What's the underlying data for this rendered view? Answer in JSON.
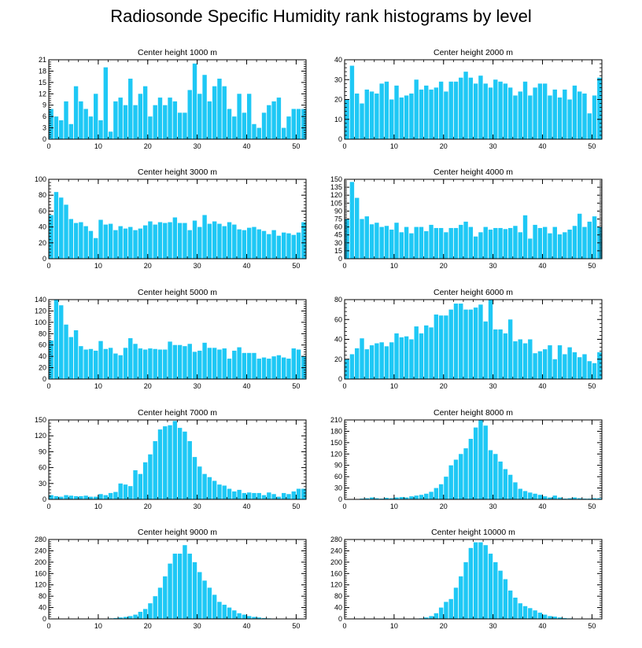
{
  "title": "Radiosonde Specific Humidity rank histograms by level",
  "colors": {
    "bar": "#1EC8F5",
    "axis": "#000000",
    "background": "#ffffff"
  },
  "chart_data": [
    {
      "type": "bar",
      "title": "Center height 1000 m",
      "x": [
        0,
        1,
        2,
        3,
        4,
        5,
        6,
        7,
        8,
        9,
        10,
        11,
        12,
        13,
        14,
        15,
        16,
        17,
        18,
        19,
        20,
        21,
        22,
        23,
        24,
        25,
        26,
        27,
        28,
        29,
        30,
        31,
        32,
        33,
        34,
        35,
        36,
        37,
        38,
        39,
        40,
        41,
        42,
        43,
        44,
        45,
        46,
        47,
        48,
        49,
        50,
        51
      ],
      "values": [
        8,
        6,
        5,
        10,
        4,
        14,
        10,
        8,
        6,
        12,
        5,
        19,
        2,
        10,
        11,
        9,
        16,
        9,
        12,
        14,
        6,
        9,
        11,
        9,
        11,
        10,
        7,
        7,
        13,
        20,
        12,
        17,
        10,
        14,
        16,
        14,
        8,
        6,
        12,
        7,
        12,
        4,
        3,
        7,
        9,
        10,
        11,
        3,
        6,
        8,
        8,
        8
      ],
      "xlim": [
        0,
        52
      ],
      "ylim": [
        0,
        21
      ],
      "xticks": [
        0,
        10,
        20,
        30,
        40,
        50
      ],
      "yticks": [
        0,
        3,
        6,
        9,
        12,
        15,
        18,
        21
      ]
    },
    {
      "type": "bar",
      "title": "Center height 2000 m",
      "x": [
        0,
        1,
        2,
        3,
        4,
        5,
        6,
        7,
        8,
        9,
        10,
        11,
        12,
        13,
        14,
        15,
        16,
        17,
        18,
        19,
        20,
        21,
        22,
        23,
        24,
        25,
        26,
        27,
        28,
        29,
        30,
        31,
        32,
        33,
        34,
        35,
        36,
        37,
        38,
        39,
        40,
        41,
        42,
        43,
        44,
        45,
        46,
        47,
        48,
        49,
        50,
        51
      ],
      "values": [
        20,
        37,
        23,
        18,
        25,
        24,
        23,
        28,
        29,
        20,
        27,
        21,
        22,
        23,
        30,
        25,
        27,
        25,
        26,
        29,
        24,
        29,
        29,
        31,
        34,
        31,
        28,
        32,
        28,
        26,
        30,
        29,
        28,
        26,
        22,
        24,
        29,
        22,
        26,
        28,
        28,
        22,
        25,
        21,
        25,
        20,
        27,
        24,
        23,
        13,
        22,
        31
      ],
      "xlim": [
        0,
        52
      ],
      "ylim": [
        0,
        40
      ],
      "xticks": [
        0,
        10,
        20,
        30,
        40,
        50
      ],
      "yticks": [
        0,
        10,
        20,
        30,
        40
      ]
    },
    {
      "type": "bar",
      "title": "Center height 3000 m",
      "x": [
        0,
        1,
        2,
        3,
        4,
        5,
        6,
        7,
        8,
        9,
        10,
        11,
        12,
        13,
        14,
        15,
        16,
        17,
        18,
        19,
        20,
        21,
        22,
        23,
        24,
        25,
        26,
        27,
        28,
        29,
        30,
        31,
        32,
        33,
        34,
        35,
        36,
        37,
        38,
        39,
        40,
        41,
        42,
        43,
        44,
        45,
        46,
        47,
        48,
        49,
        50,
        51
      ],
      "values": [
        55,
        84,
        77,
        68,
        50,
        45,
        46,
        41,
        35,
        26,
        49,
        43,
        44,
        36,
        41,
        38,
        40,
        36,
        38,
        42,
        47,
        43,
        46,
        45,
        46,
        52,
        45,
        45,
        36,
        48,
        40,
        55,
        44,
        47,
        44,
        41,
        46,
        43,
        37,
        36,
        39,
        40,
        37,
        35,
        31,
        36,
        29,
        33,
        32,
        30,
        33,
        46
      ],
      "xlim": [
        0,
        52
      ],
      "ylim": [
        0,
        100
      ],
      "xticks": [
        0,
        10,
        20,
        30,
        40,
        50
      ],
      "yticks": [
        0,
        20,
        40,
        60,
        80,
        100
      ]
    },
    {
      "type": "bar",
      "title": "Center height 4000 m",
      "x": [
        0,
        1,
        2,
        3,
        4,
        5,
        6,
        7,
        8,
        9,
        10,
        11,
        12,
        13,
        14,
        15,
        16,
        17,
        18,
        19,
        20,
        21,
        22,
        23,
        24,
        25,
        26,
        27,
        28,
        29,
        30,
        31,
        32,
        33,
        34,
        35,
        36,
        37,
        38,
        39,
        40,
        41,
        42,
        43,
        44,
        45,
        46,
        47,
        48,
        49,
        50,
        51
      ],
      "values": [
        75,
        145,
        115,
        75,
        80,
        65,
        68,
        60,
        62,
        55,
        68,
        50,
        60,
        48,
        60,
        60,
        52,
        64,
        58,
        58,
        50,
        58,
        58,
        64,
        70,
        60,
        42,
        50,
        60,
        55,
        58,
        58,
        56,
        58,
        62,
        50,
        82,
        38,
        64,
        58,
        60,
        48,
        60,
        46,
        50,
        55,
        62,
        85,
        60,
        70,
        80,
        60
      ],
      "xlim": [
        0,
        52
      ],
      "ylim": [
        0,
        150
      ],
      "xticks": [
        0,
        10,
        20,
        30,
        40,
        50
      ],
      "yticks": [
        0,
        15,
        30,
        45,
        60,
        75,
        90,
        105,
        120,
        135,
        150
      ]
    },
    {
      "type": "bar",
      "title": "Center height 5000 m",
      "x": [
        0,
        1,
        2,
        3,
        4,
        5,
        6,
        7,
        8,
        9,
        10,
        11,
        12,
        13,
        14,
        15,
        16,
        17,
        18,
        19,
        20,
        21,
        22,
        23,
        24,
        25,
        26,
        27,
        28,
        29,
        30,
        31,
        32,
        33,
        34,
        35,
        36,
        37,
        38,
        39,
        40,
        41,
        42,
        43,
        44,
        45,
        46,
        47,
        48,
        49,
        50,
        51
      ],
      "values": [
        68,
        140,
        130,
        96,
        74,
        86,
        58,
        52,
        53,
        50,
        67,
        53,
        55,
        45,
        42,
        55,
        72,
        62,
        54,
        52,
        54,
        53,
        52,
        52,
        66,
        60,
        60,
        58,
        62,
        48,
        50,
        64,
        55,
        55,
        52,
        54,
        36,
        50,
        56,
        46,
        46,
        46,
        36,
        38,
        36,
        40,
        42,
        38,
        36,
        54,
        52,
        40
      ],
      "xlim": [
        0,
        52
      ],
      "ylim": [
        0,
        140
      ],
      "xticks": [
        0,
        10,
        20,
        30,
        40,
        50
      ],
      "yticks": [
        0,
        20,
        40,
        60,
        80,
        100,
        120,
        140
      ]
    },
    {
      "type": "bar",
      "title": "Center height 6000 m",
      "x": [
        0,
        1,
        2,
        3,
        4,
        5,
        6,
        7,
        8,
        9,
        10,
        11,
        12,
        13,
        14,
        15,
        16,
        17,
        18,
        19,
        20,
        21,
        22,
        23,
        24,
        25,
        26,
        27,
        28,
        29,
        30,
        31,
        32,
        33,
        34,
        35,
        36,
        37,
        38,
        39,
        40,
        41,
        42,
        43,
        44,
        45,
        46,
        47,
        48,
        49,
        50,
        51
      ],
      "values": [
        20,
        25,
        31,
        41,
        30,
        34,
        36,
        37,
        33,
        37,
        46,
        42,
        43,
        40,
        53,
        46,
        54,
        52,
        65,
        64,
        64,
        70,
        76,
        76,
        70,
        70,
        72,
        75,
        58,
        80,
        50,
        50,
        46,
        60,
        38,
        40,
        36,
        40,
        26,
        28,
        30,
        34,
        20,
        34,
        25,
        32,
        27,
        22,
        25,
        18,
        16,
        27
      ],
      "xlim": [
        0,
        52
      ],
      "ylim": [
        0,
        80
      ],
      "xticks": [
        0,
        10,
        20,
        30,
        40,
        50
      ],
      "yticks": [
        0,
        20,
        40,
        60,
        80
      ]
    },
    {
      "type": "bar",
      "title": "Center height 7000 m",
      "x": [
        0,
        1,
        2,
        3,
        4,
        5,
        6,
        7,
        8,
        9,
        10,
        11,
        12,
        13,
        14,
        15,
        16,
        17,
        18,
        19,
        20,
        21,
        22,
        23,
        24,
        25,
        26,
        27,
        28,
        29,
        30,
        31,
        32,
        33,
        34,
        35,
        36,
        37,
        38,
        39,
        40,
        41,
        42,
        43,
        44,
        45,
        46,
        47,
        48,
        49,
        50,
        51
      ],
      "values": [
        8,
        6,
        5,
        8,
        7,
        6,
        6,
        7,
        5,
        5,
        10,
        8,
        12,
        14,
        30,
        28,
        25,
        55,
        48,
        70,
        85,
        110,
        132,
        138,
        140,
        148,
        135,
        128,
        110,
        80,
        62,
        48,
        42,
        35,
        28,
        26,
        20,
        15,
        18,
        12,
        13,
        12,
        12,
        8,
        13,
        10,
        5,
        12,
        10,
        15,
        20,
        20
      ],
      "xlim": [
        0,
        52
      ],
      "ylim": [
        0,
        150
      ],
      "xticks": [
        0,
        10,
        20,
        30,
        40,
        50
      ],
      "yticks": [
        0,
        30,
        60,
        90,
        120,
        150
      ]
    },
    {
      "type": "bar",
      "title": "Center height 8000 m",
      "x": [
        0,
        1,
        2,
        3,
        4,
        5,
        6,
        7,
        8,
        9,
        10,
        11,
        12,
        13,
        14,
        15,
        16,
        17,
        18,
        19,
        20,
        21,
        22,
        23,
        24,
        25,
        26,
        27,
        28,
        29,
        30,
        31,
        32,
        33,
        34,
        35,
        36,
        37,
        38,
        39,
        40,
        41,
        42,
        43,
        44,
        45,
        46,
        47,
        48,
        49,
        50,
        51
      ],
      "values": [
        0,
        0,
        1,
        2,
        3,
        5,
        3,
        2,
        4,
        3,
        5,
        6,
        5,
        8,
        10,
        12,
        15,
        20,
        30,
        40,
        60,
        90,
        105,
        120,
        135,
        160,
        190,
        210,
        195,
        130,
        120,
        100,
        80,
        65,
        45,
        28,
        22,
        18,
        15,
        12,
        8,
        5,
        10,
        5,
        2,
        3,
        5,
        3,
        2,
        2,
        3,
        3
      ],
      "xlim": [
        0,
        52
      ],
      "ylim": [
        0,
        210
      ],
      "xticks": [
        0,
        10,
        20,
        30,
        40,
        50
      ],
      "yticks": [
        0,
        30,
        60,
        90,
        120,
        150,
        180,
        210
      ]
    },
    {
      "type": "bar",
      "title": "Center height 9000 m",
      "x": [
        0,
        1,
        2,
        3,
        4,
        5,
        6,
        7,
        8,
        9,
        10,
        11,
        12,
        13,
        14,
        15,
        16,
        17,
        18,
        19,
        20,
        21,
        22,
        23,
        24,
        25,
        26,
        27,
        28,
        29,
        30,
        31,
        32,
        33,
        34,
        35,
        36,
        37,
        38,
        39,
        40,
        41,
        42,
        43,
        44,
        45,
        46,
        47,
        48,
        49,
        50,
        51
      ],
      "values": [
        0,
        0,
        0,
        0,
        0,
        0,
        0,
        0,
        1,
        1,
        1,
        1,
        2,
        3,
        5,
        7,
        10,
        15,
        25,
        35,
        55,
        80,
        110,
        150,
        195,
        230,
        230,
        260,
        230,
        200,
        165,
        135,
        110,
        85,
        60,
        50,
        40,
        30,
        20,
        15,
        10,
        7,
        5,
        3,
        2,
        1,
        1,
        0,
        0,
        0,
        0,
        0
      ],
      "xlim": [
        0,
        52
      ],
      "ylim": [
        0,
        280
      ],
      "xticks": [
        0,
        10,
        20,
        30,
        40,
        50
      ],
      "yticks": [
        0,
        40,
        80,
        120,
        160,
        200,
        240,
        280
      ]
    },
    {
      "type": "bar",
      "title": "Center height 10000 m",
      "x": [
        0,
        1,
        2,
        3,
        4,
        5,
        6,
        7,
        8,
        9,
        10,
        11,
        12,
        13,
        14,
        15,
        16,
        17,
        18,
        19,
        20,
        21,
        22,
        23,
        24,
        25,
        26,
        27,
        28,
        29,
        30,
        31,
        32,
        33,
        34,
        35,
        36,
        37,
        38,
        39,
        40,
        41,
        42,
        43,
        44,
        45,
        46,
        47,
        48,
        49,
        50,
        51
      ],
      "values": [
        0,
        0,
        0,
        0,
        0,
        0,
        0,
        0,
        0,
        0,
        0,
        0,
        0,
        0,
        1,
        2,
        5,
        10,
        20,
        40,
        60,
        70,
        110,
        150,
        200,
        250,
        270,
        270,
        260,
        230,
        200,
        170,
        140,
        100,
        75,
        55,
        45,
        38,
        30,
        22,
        15,
        10,
        8,
        5,
        3,
        2,
        1,
        1,
        0,
        0,
        0,
        0
      ],
      "xlim": [
        0,
        52
      ],
      "ylim": [
        0,
        280
      ],
      "xticks": [
        0,
        10,
        20,
        30,
        40,
        50
      ],
      "yticks": [
        0,
        40,
        80,
        120,
        160,
        200,
        240,
        280
      ]
    }
  ]
}
